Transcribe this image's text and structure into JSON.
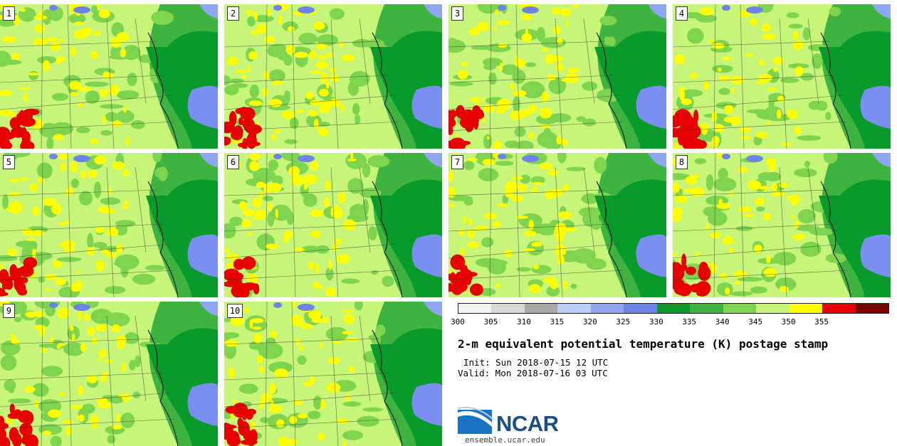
{
  "panels": [
    {
      "label": "1"
    },
    {
      "label": "2"
    },
    {
      "label": "3"
    },
    {
      "label": "4"
    },
    {
      "label": "5"
    },
    {
      "label": "6"
    },
    {
      "label": "7"
    },
    {
      "label": "8"
    },
    {
      "label": "9"
    },
    {
      "label": "10"
    }
  ],
  "colorbar": {
    "ticks": [
      "300",
      "305",
      "310",
      "315",
      "320",
      "325",
      "330",
      "335",
      "340",
      "345",
      "350",
      "355"
    ],
    "colors": [
      "#f2f2f2",
      "#d8d8d8",
      "#a8a8a8",
      "#b9cdf7",
      "#8fa7f2",
      "#6c83e8",
      "#089a2a",
      "#3fb33f",
      "#7fd44f",
      "#c7f57a",
      "#ffff00",
      "#e60000",
      "#7a0000"
    ]
  },
  "title": "2-m equivalent potential temperature (K) postage stamp",
  "init": "Init: Sun 2018-07-15 12 UTC",
  "valid": "Valid: Mon 2018-07-16 03 UTC",
  "logo": {
    "name": "NCAR",
    "url": "ensemble.ucar.edu"
  }
}
